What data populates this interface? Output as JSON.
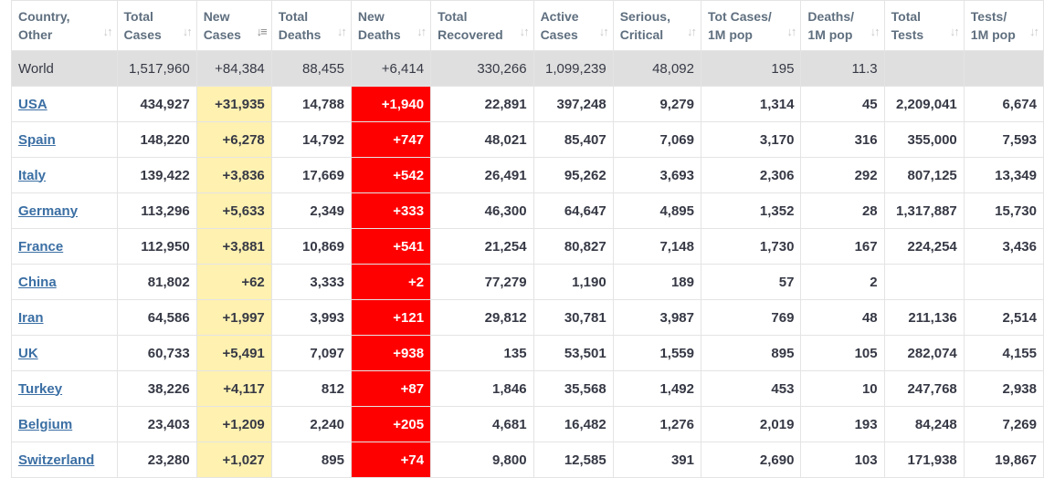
{
  "headers": [
    {
      "key": "country",
      "l1": "Country,",
      "l2": "Other",
      "sorted": false
    },
    {
      "key": "total_cases",
      "l1": "Total",
      "l2": "Cases",
      "sorted": false
    },
    {
      "key": "new_cases",
      "l1": "New",
      "l2": "Cases",
      "sorted": true
    },
    {
      "key": "total_deaths",
      "l1": "Total",
      "l2": "Deaths",
      "sorted": false
    },
    {
      "key": "new_deaths",
      "l1": "New",
      "l2": "Deaths",
      "sorted": false
    },
    {
      "key": "total_recovered",
      "l1": "Total",
      "l2": "Recovered",
      "sorted": false
    },
    {
      "key": "active_cases",
      "l1": "Active",
      "l2": "Cases",
      "sorted": false
    },
    {
      "key": "serious_critical",
      "l1": "Serious,",
      "l2": "Critical",
      "sorted": false
    },
    {
      "key": "cases_per_1m",
      "l1": "Tot Cases/",
      "l2": "1M pop",
      "sorted": false
    },
    {
      "key": "deaths_per_1m",
      "l1": "Deaths/",
      "l2": "1M pop",
      "sorted": false
    },
    {
      "key": "total_tests",
      "l1": "Total",
      "l2": "Tests",
      "sorted": false
    },
    {
      "key": "tests_per_1m",
      "l1": "Tests/",
      "l2": "1M pop",
      "sorted": false
    }
  ],
  "sort_icons": {
    "inactive": "↓↑",
    "active": "↓≡"
  },
  "world": [
    "World",
    "1,517,960",
    "+84,384",
    "88,455",
    "+6,414",
    "330,266",
    "1,099,239",
    "48,092",
    "195",
    "11.3",
    "",
    ""
  ],
  "rows": [
    [
      "USA",
      "434,927",
      "+31,935",
      "14,788",
      "+1,940",
      "22,891",
      "397,248",
      "9,279",
      "1,314",
      "45",
      "2,209,041",
      "6,674"
    ],
    [
      "Spain",
      "148,220",
      "+6,278",
      "14,792",
      "+747",
      "48,021",
      "85,407",
      "7,069",
      "3,170",
      "316",
      "355,000",
      "7,593"
    ],
    [
      "Italy",
      "139,422",
      "+3,836",
      "17,669",
      "+542",
      "26,491",
      "95,262",
      "3,693",
      "2,306",
      "292",
      "807,125",
      "13,349"
    ],
    [
      "Germany",
      "113,296",
      "+5,633",
      "2,349",
      "+333",
      "46,300",
      "64,647",
      "4,895",
      "1,352",
      "28",
      "1,317,887",
      "15,730"
    ],
    [
      "France",
      "112,950",
      "+3,881",
      "10,869",
      "+541",
      "21,254",
      "80,827",
      "7,148",
      "1,730",
      "167",
      "224,254",
      "3,436"
    ],
    [
      "China",
      "81,802",
      "+62",
      "3,333",
      "+2",
      "77,279",
      "1,190",
      "189",
      "57",
      "2",
      "",
      ""
    ],
    [
      "Iran",
      "64,586",
      "+1,997",
      "3,993",
      "+121",
      "29,812",
      "30,781",
      "3,987",
      "769",
      "48",
      "211,136",
      "2,514"
    ],
    [
      "UK",
      "60,733",
      "+5,491",
      "7,097",
      "+938",
      "135",
      "53,501",
      "1,559",
      "895",
      "105",
      "282,074",
      "4,155"
    ],
    [
      "Turkey",
      "38,226",
      "+4,117",
      "812",
      "+87",
      "1,846",
      "35,568",
      "1,492",
      "453",
      "10",
      "247,768",
      "2,938"
    ],
    [
      "Belgium",
      "23,403",
      "+1,209",
      "2,240",
      "+205",
      "4,681",
      "16,482",
      "1,276",
      "2,019",
      "193",
      "84,248",
      "7,269"
    ],
    [
      "Switzerland",
      "23,280",
      "+1,027",
      "895",
      "+74",
      "9,800",
      "12,585",
      "391",
      "2,690",
      "103",
      "171,938",
      "19,867"
    ]
  ],
  "colors": {
    "new_cases_highlight": "#fff1b0",
    "new_deaths_highlight": "#ff0000",
    "world_row_bg": "#dfdfdf",
    "link": "#3b6fa4",
    "header_text": "#5f6f7f"
  }
}
